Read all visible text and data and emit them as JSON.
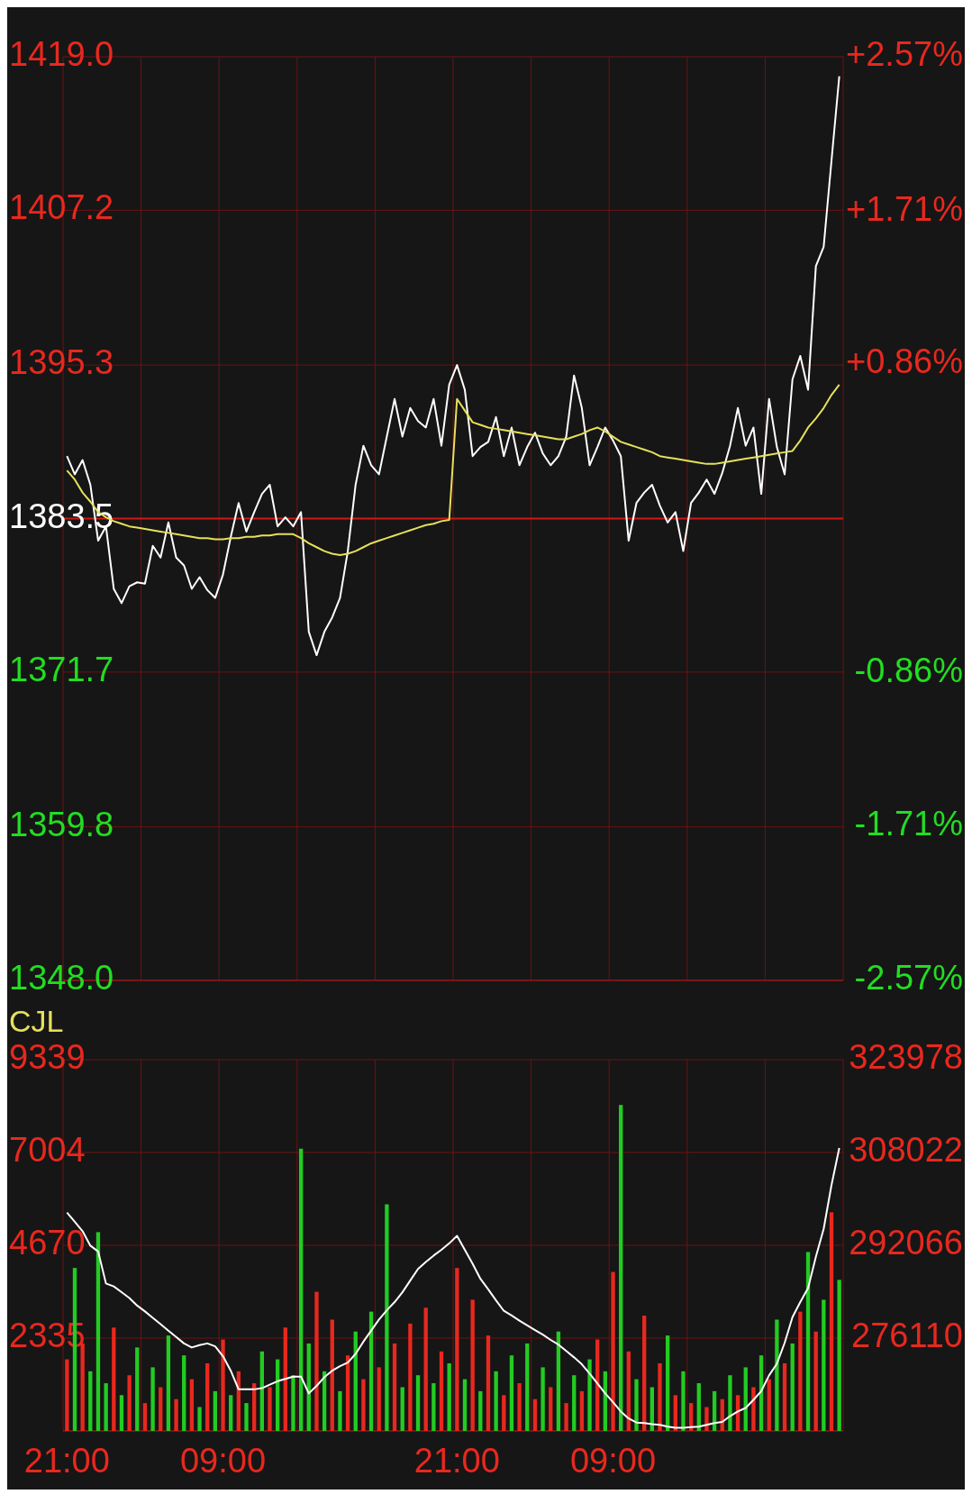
{
  "chart_data": [
    {
      "type": "line",
      "ylim": [
        1348.0,
        1419.0
      ],
      "yticks": [
        {
          "value": 1348.0,
          "label": "1348.0"
        },
        {
          "value": 1359.8,
          "label": "1359.8"
        },
        {
          "value": 1371.7,
          "label": "1371.7"
        },
        {
          "value": 1383.5,
          "label": "1383.5"
        },
        {
          "value": 1395.3,
          "label": "1395.3"
        },
        {
          "value": 1407.2,
          "label": "1407.2"
        },
        {
          "value": 1419.0,
          "label": "1419.0"
        }
      ],
      "y2lim": [
        -2.57,
        2.57
      ],
      "y2ticks": [
        {
          "value": -2.57,
          "label": "-2.57%"
        },
        {
          "value": -1.71,
          "label": "-1.71%"
        },
        {
          "value": -0.86,
          "label": "-0.86%"
        },
        {
          "value": 0.86,
          "label": "+0.86%"
        },
        {
          "value": 1.71,
          "label": "+1.71%"
        },
        {
          "value": 2.57,
          "label": "+2.57%"
        }
      ],
      "grid": true,
      "ref_lines": [
        {
          "axis": "y",
          "value": 1383.5,
          "color": "#d01818"
        }
      ],
      "series": [
        {
          "color": "#ffffff",
          "values": [
            1388.3,
            1386.9,
            1388.0,
            1386.1,
            1381.8,
            1382.9,
            1378.1,
            1377.0,
            1378.3,
            1378.6,
            1378.5,
            1381.4,
            1380.5,
            1383.2,
            1380.5,
            1379.9,
            1378.1,
            1379.0,
            1378.0,
            1377.4,
            1379.2,
            1382.1,
            1384.7,
            1382.5,
            1384.0,
            1385.4,
            1386.1,
            1382.9,
            1383.6,
            1382.9,
            1384.0,
            1374.8,
            1373.0,
            1374.8,
            1375.9,
            1377.4,
            1381.0,
            1386.1,
            1389.1,
            1387.6,
            1386.9,
            1389.8,
            1392.7,
            1389.8,
            1392.0,
            1391.0,
            1390.5,
            1392.7,
            1389.1,
            1393.8,
            1395.3,
            1393.4,
            1388.3,
            1389.0,
            1389.4,
            1391.3,
            1388.3,
            1390.5,
            1387.6,
            1389.0,
            1390.1,
            1388.5,
            1387.6,
            1388.3,
            1389.8,
            1394.5,
            1392.0,
            1387.6,
            1389.0,
            1390.5,
            1389.5,
            1388.3,
            1381.8,
            1384.7,
            1385.5,
            1386.1,
            1384.5,
            1383.2,
            1384.0,
            1381.0,
            1384.7,
            1385.5,
            1386.5,
            1385.4,
            1387.0,
            1389.1,
            1392.0,
            1389.1,
            1390.5,
            1385.4,
            1392.7,
            1389.0,
            1386.9,
            1394.2,
            1396.0,
            1393.4,
            1402.9,
            1404.4,
            1411.0,
            1417.5
          ]
        },
        {
          "color": "#e5e05a",
          "values": [
            1387.2,
            1386.5,
            1385.5,
            1384.8,
            1384.0,
            1383.6,
            1383.3,
            1383.1,
            1382.9,
            1382.8,
            1382.7,
            1382.6,
            1382.5,
            1382.4,
            1382.3,
            1382.2,
            1382.1,
            1382.0,
            1382.0,
            1381.9,
            1381.9,
            1382.0,
            1382.0,
            1382.1,
            1382.1,
            1382.2,
            1382.2,
            1382.3,
            1382.3,
            1382.3,
            1382.0,
            1381.6,
            1381.3,
            1381.0,
            1380.8,
            1380.7,
            1380.8,
            1381.0,
            1381.3,
            1381.6,
            1381.8,
            1382.0,
            1382.2,
            1382.4,
            1382.6,
            1382.8,
            1383.0,
            1383.1,
            1383.3,
            1383.4,
            1392.7,
            1391.8,
            1390.9,
            1390.7,
            1390.5,
            1390.4,
            1390.3,
            1390.2,
            1390.1,
            1390.0,
            1389.9,
            1389.8,
            1389.7,
            1389.6,
            1389.6,
            1389.8,
            1390.0,
            1390.3,
            1390.5,
            1390.2,
            1389.8,
            1389.4,
            1389.2,
            1389.0,
            1388.8,
            1388.6,
            1388.3,
            1388.2,
            1388.1,
            1388.0,
            1387.9,
            1387.8,
            1387.7,
            1387.7,
            1387.8,
            1387.9,
            1388.0,
            1388.1,
            1388.2,
            1388.3,
            1388.4,
            1388.5,
            1388.6,
            1388.7,
            1389.5,
            1390.5,
            1391.2,
            1392.0,
            1393.0,
            1393.8
          ]
        }
      ]
    },
    {
      "type": "bar",
      "title": "CJL",
      "categories": [
        "21:00",
        null,
        null,
        null,
        null,
        null,
        null,
        null,
        null,
        null,
        null,
        null,
        null,
        null,
        null,
        null,
        null,
        null,
        null,
        null,
        "09:00",
        null,
        null,
        null,
        null,
        null,
        null,
        null,
        null,
        null,
        null,
        null,
        null,
        null,
        null,
        null,
        null,
        null,
        null,
        null,
        null,
        null,
        null,
        null,
        null,
        null,
        null,
        null,
        null,
        null,
        "21:00",
        null,
        null,
        null,
        null,
        null,
        null,
        null,
        null,
        null,
        null,
        null,
        null,
        null,
        null,
        null,
        null,
        null,
        null,
        null,
        "09:00",
        null,
        null,
        null,
        null,
        null,
        null,
        null,
        null,
        null,
        null,
        null,
        null,
        null,
        null,
        null,
        null,
        null,
        null,
        null,
        null,
        null,
        null,
        null,
        null,
        null,
        null,
        null,
        null,
        null
      ],
      "ylim": [
        0,
        9339
      ],
      "yticks": [
        2335,
        4670,
        7004,
        9339
      ],
      "y2lim": [
        260154,
        323978
      ],
      "y2ticks": [
        276110,
        292066,
        308022,
        323978
      ],
      "grid": true,
      "series": [
        {
          "values": [
            1800,
            4100,
            2200,
            1500,
            5000,
            1200,
            2600,
            900,
            1400,
            2100,
            700,
            1600,
            1100,
            2400,
            800,
            1900,
            1300,
            600,
            1700,
            1000,
            2300,
            900,
            1500,
            700,
            1200,
            2000,
            1100,
            1800,
            2600,
            1400,
            7100,
            2200,
            3500,
            1500,
            2800,
            1000,
            1900,
            2500,
            1300,
            3000,
            1600,
            5700,
            2200,
            1100,
            2700,
            1400,
            3100,
            1200,
            2000,
            1700,
            4100,
            1300,
            3300,
            1000,
            2400,
            1500,
            900,
            1900,
            1200,
            2200,
            800,
            1600,
            1100,
            2500,
            700,
            1400,
            1000,
            1800,
            2300,
            1500,
            4000,
            8200,
            2000,
            1300,
            2900,
            1100,
            1700,
            2400,
            900,
            1500,
            700,
            1200,
            600,
            1000,
            800,
            1400,
            900,
            1600,
            1100,
            1900,
            1300,
            2800,
            1700,
            2200,
            3000,
            4500,
            2500,
            3300,
            5500,
            3800
          ],
          "colors": [
            "#e8281e",
            "#22cc22",
            "#e8281e",
            "#22cc22",
            "#22cc22",
            "#22cc22",
            "#e8281e",
            "#22cc22",
            "#e8281e",
            "#22cc22",
            "#e8281e",
            "#22cc22",
            "#e8281e",
            "#22cc22",
            "#e8281e",
            "#22cc22",
            "#e8281e",
            "#22cc22",
            "#e8281e",
            "#22cc22",
            "#e8281e",
            "#22cc22",
            "#e8281e",
            "#22cc22",
            "#e8281e",
            "#22cc22",
            "#e8281e",
            "#22cc22",
            "#e8281e",
            "#22cc22",
            "#22cc22",
            "#22cc22",
            "#e8281e",
            "#22cc22",
            "#e8281e",
            "#22cc22",
            "#e8281e",
            "#22cc22",
            "#e8281e",
            "#22cc22",
            "#e8281e",
            "#22cc22",
            "#e8281e",
            "#22cc22",
            "#e8281e",
            "#22cc22",
            "#e8281e",
            "#22cc22",
            "#e8281e",
            "#22cc22",
            "#e8281e",
            "#22cc22",
            "#e8281e",
            "#22cc22",
            "#e8281e",
            "#22cc22",
            "#e8281e",
            "#22cc22",
            "#e8281e",
            "#22cc22",
            "#e8281e",
            "#22cc22",
            "#e8281e",
            "#22cc22",
            "#e8281e",
            "#22cc22",
            "#e8281e",
            "#22cc22",
            "#e8281e",
            "#22cc22",
            "#e8281e",
            "#22cc22",
            "#e8281e",
            "#22cc22",
            "#e8281e",
            "#22cc22",
            "#e8281e",
            "#22cc22",
            "#e8281e",
            "#22cc22",
            "#e8281e",
            "#22cc22",
            "#e8281e",
            "#22cc22",
            "#e8281e",
            "#22cc22",
            "#e8281e",
            "#22cc22",
            "#e8281e",
            "#22cc22",
            "#e8281e",
            "#22cc22",
            "#e8281e",
            "#22cc22",
            "#e8281e",
            "#22cc22",
            "#e8281e",
            "#22cc22",
            "#e8281e",
            "#22cc22"
          ]
        },
        {
          "type": "line",
          "axis": "y2",
          "color": "#ffffff",
          "values": [
            297700,
            296100,
            294500,
            292000,
            291000,
            285500,
            285000,
            284000,
            283000,
            281700,
            280700,
            279600,
            278500,
            277400,
            276300,
            275200,
            274500,
            274900,
            275200,
            274700,
            273000,
            270500,
            267300,
            267300,
            267300,
            267500,
            268100,
            268700,
            269100,
            269500,
            269500,
            266600,
            267900,
            269400,
            270500,
            271300,
            271900,
            273400,
            275500,
            277400,
            279300,
            280900,
            282300,
            284000,
            286000,
            288000,
            289200,
            290300,
            291300,
            292400,
            293700,
            291300,
            288900,
            286300,
            284500,
            282600,
            280800,
            280000,
            279100,
            278300,
            277500,
            276700,
            275800,
            275000,
            273900,
            272800,
            271600,
            270000,
            268300,
            266600,
            265100,
            263500,
            262300,
            261600,
            261500,
            261300,
            261200,
            260900,
            260700,
            260700,
            260800,
            260900,
            261200,
            261500,
            261700,
            262700,
            263500,
            264100,
            265500,
            267000,
            269700,
            271700,
            275300,
            279700,
            282300,
            284700,
            290100,
            294900,
            302400,
            308800
          ]
        }
      ]
    }
  ]
}
